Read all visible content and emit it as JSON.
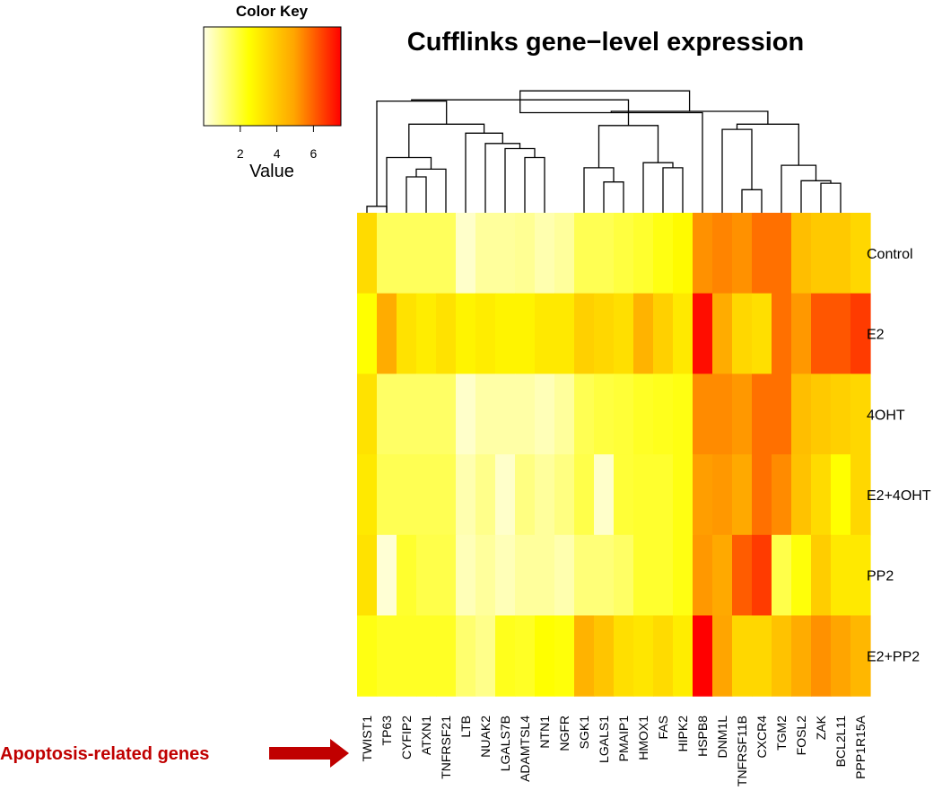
{
  "chart_data": {
    "type": "heatmap",
    "title": "Cufflinks gene−level expression",
    "color_key": {
      "title": "Color Key",
      "label": "Value",
      "range": [
        0,
        7.5
      ],
      "ticks": [
        2,
        4,
        6
      ],
      "tick_labels": [
        "2",
        "4",
        "6"
      ],
      "colors": [
        "#ffffe6",
        "#ffff00",
        "#ffa500",
        "#ff0000"
      ]
    },
    "genes": [
      "TWIST1",
      "TP63",
      "CYFIP2",
      "ATXN1",
      "TNFRSF21",
      "LTB",
      "NUAK2",
      "LGALS7B",
      "ADAMTSL4",
      "NTN1",
      "NGFR",
      "SGK1",
      "LGALS1",
      "PMAIP1",
      "HMOX1",
      "FAS",
      "HIPK2",
      "HSPB8",
      "DNM1L",
      "TNFRSF11B",
      "CXCR4",
      "TGM2",
      "FOSL2",
      "ZAK",
      "BCL2L11",
      "PPP1R15A"
    ],
    "conditions": [
      "Control",
      "E2",
      "4OHT",
      "E2+4OHT",
      "PP2",
      "E2+PP2"
    ],
    "values": [
      [
        3.5,
        1.5,
        1.5,
        1.5,
        1.5,
        0.3,
        0.8,
        0.8,
        0.9,
        0.6,
        0.8,
        1.6,
        1.6,
        1.8,
        2.0,
        2.3,
        2.6,
        5.3,
        5.5,
        5.3,
        5.8,
        5.8,
        4.3,
        4.0,
        4.0,
        3.6
      ],
      [
        2.5,
        4.8,
        3.3,
        3.0,
        3.3,
        2.8,
        3.0,
        2.8,
        2.8,
        3.1,
        3.1,
        3.8,
        3.6,
        3.4,
        4.6,
        3.8,
        3.1,
        7.3,
        4.8,
        3.6,
        3.4,
        5.8,
        5.2,
        6.2,
        6.2,
        6.6
      ],
      [
        3.3,
        1.4,
        1.4,
        1.4,
        1.4,
        0.3,
        0.7,
        0.7,
        0.7,
        0.5,
        0.8,
        1.6,
        1.8,
        1.9,
        2.1,
        2.2,
        2.3,
        5.4,
        5.4,
        5.2,
        5.8,
        5.8,
        4.3,
        4.0,
        3.8,
        3.6
      ],
      [
        3.1,
        1.6,
        1.6,
        1.6,
        1.6,
        0.6,
        1.0,
        0.3,
        1.1,
        0.8,
        1.1,
        1.7,
        0.3,
        1.9,
        2.0,
        2.0,
        2.3,
        5.1,
        5.2,
        4.9,
        5.8,
        5.4,
        4.2,
        3.5,
        2.5,
        3.6
      ],
      [
        3.3,
        0.2,
        2.0,
        1.7,
        1.7,
        0.5,
        0.8,
        0.5,
        0.8,
        0.8,
        0.6,
        1.2,
        1.2,
        1.4,
        2.0,
        2.0,
        2.3,
        5.2,
        4.9,
        6.1,
        6.6,
        1.7,
        2.4,
        3.9,
        3.1,
        3.1
      ],
      [
        2.3,
        2.1,
        2.1,
        2.1,
        2.1,
        1.3,
        1.0,
        2.2,
        2.1,
        2.5,
        2.4,
        4.6,
        4.1,
        3.4,
        3.2,
        3.5,
        3.0,
        7.5,
        5.0,
        3.6,
        3.6,
        4.2,
        4.8,
        5.3,
        5.0,
        4.5
      ]
    ],
    "col_dendrogram": [
      [
        0,
        1,
        0.5,
        0.05
      ],
      [
        2,
        3,
        0.2,
        0.28
      ],
      [
        -2,
        4,
        0.3,
        0.34
      ],
      [
        -3,
        1,
        0.45,
        0.43
      ],
      [
        8,
        9,
        0.18,
        0.43
      ],
      [
        7,
        -5,
        0.3,
        0.5
      ],
      [
        6,
        -6,
        0.36,
        0.54
      ],
      [
        5,
        -7,
        0.42,
        0.62
      ],
      [
        -4,
        -8,
        0.68,
        0.69
      ],
      [
        -1,
        -9,
        0.82,
        0.87
      ],
      [
        12,
        13,
        0.23,
        0.24
      ],
      [
        11,
        -11,
        0.3,
        0.35
      ],
      [
        15,
        16,
        0.23,
        0.35
      ],
      [
        14,
        -13,
        0.37,
        0.39
      ],
      [
        -12,
        -14,
        0.42,
        0.68
      ],
      [
        -10,
        -15,
        0.87,
        0.88
      ],
      [
        19,
        20,
        0.25,
        0.18
      ],
      [
        18,
        -17,
        0.5,
        0.65
      ],
      [
        23,
        24,
        0.21,
        0.23
      ],
      [
        22,
        -19,
        0.24,
        0.25
      ],
      [
        21,
        -20,
        0.31,
        0.37
      ],
      [
        -18,
        -21,
        0.66,
        0.69
      ],
      [
        17,
        -16,
        0.72,
        0.78
      ],
      [
        -23,
        -22,
        0.78,
        0.79
      ],
      [
        -16,
        -24,
        1.0,
        0.95
      ]
    ],
    "annotation": "Apoptosis-related genes"
  }
}
